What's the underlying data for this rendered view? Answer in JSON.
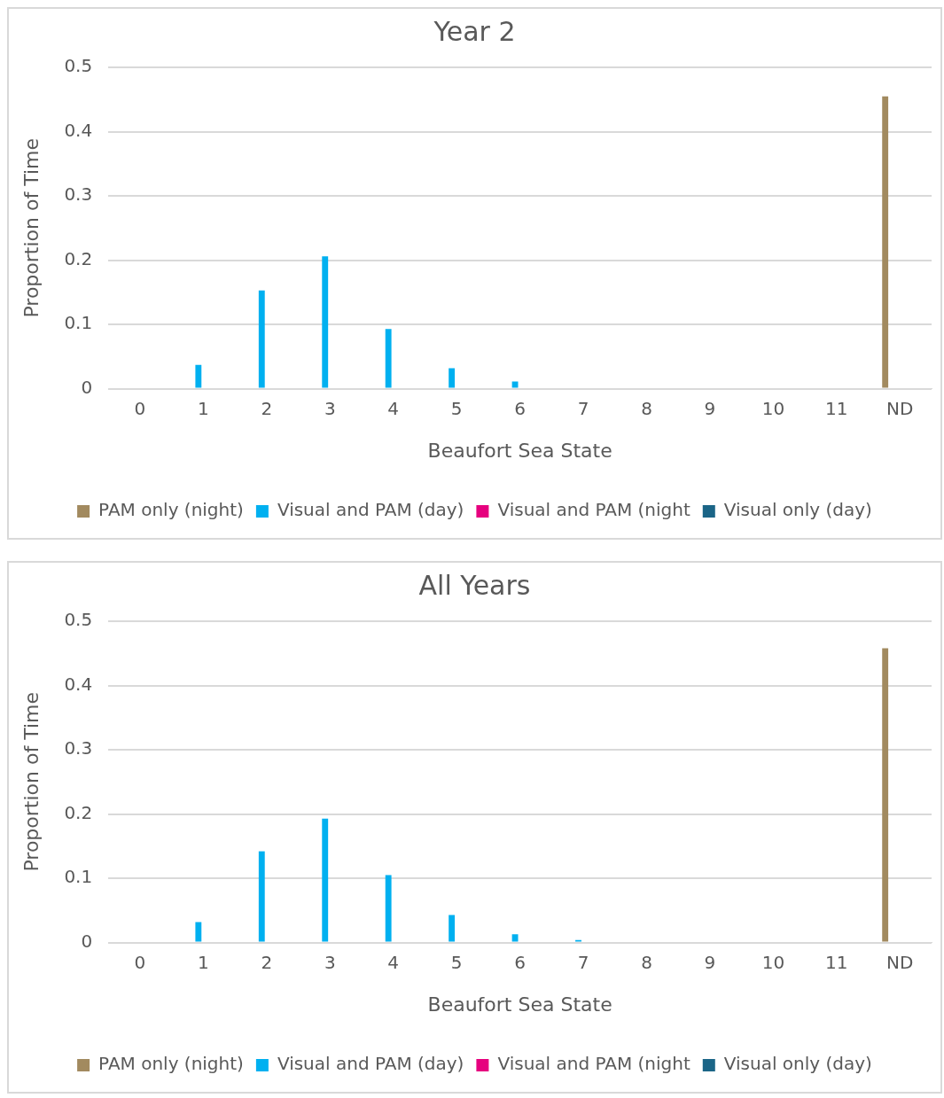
{
  "chart_data": [
    {
      "type": "bar",
      "title": "Year 2",
      "xlabel": "Beaufort Sea State",
      "ylabel": "Proportion of Time",
      "categories": [
        "0",
        "1",
        "2",
        "3",
        "4",
        "5",
        "6",
        "7",
        "8",
        "9",
        "10",
        "11",
        "ND"
      ],
      "series": [
        {
          "name": "PAM only (night)",
          "color": "#a28a5f",
          "values": [
            0,
            0,
            0,
            0,
            0,
            0,
            0,
            0,
            0,
            0,
            0,
            0,
            0.455
          ]
        },
        {
          "name": "Visual and PAM (day)",
          "color": "#00b0f0",
          "values": [
            null,
            0.037,
            0.153,
            0.206,
            0.093,
            0.032,
            0.011,
            null,
            0,
            0,
            0,
            0,
            0
          ]
        },
        {
          "name": "Visual and PAM (night",
          "color": "#e6007e",
          "values": [
            0,
            0,
            0,
            0,
            0,
            0,
            0,
            0,
            0,
            0,
            0,
            0,
            0
          ]
        },
        {
          "name": "Visual only (day)",
          "color": "#1b6587",
          "values": [
            0,
            0,
            0,
            0,
            0,
            0,
            0,
            0,
            0,
            0,
            0,
            0,
            0
          ]
        }
      ],
      "ylim": [
        0,
        0.5
      ],
      "yticks": [
        {
          "value": 0,
          "label": "0"
        },
        0.1,
        0.2,
        0.3,
        0.4,
        0.5
      ],
      "grid": "y",
      "legend": "bottom"
    },
    {
      "type": "bar",
      "title": "All Years",
      "xlabel": "Beaufort Sea State",
      "ylabel": "Proportion of Time",
      "categories": [
        "0",
        "1",
        "2",
        "3",
        "4",
        "5",
        "6",
        "7",
        "8",
        "9",
        "10",
        "11",
        "ND"
      ],
      "series": [
        {
          "name": "PAM only (night)",
          "color": "#a28a5f",
          "values": [
            0,
            0,
            0,
            0,
            0,
            0,
            0,
            0,
            0,
            0,
            0,
            0,
            0.458
          ]
        },
        {
          "name": "Visual and PAM (day)",
          "color": "#00b0f0",
          "values": [
            null,
            0.032,
            0.142,
            0.193,
            0.105,
            0.043,
            0.013,
            0.004,
            0,
            0,
            0,
            0,
            0
          ]
        },
        {
          "name": "Visual and PAM (night",
          "color": "#e6007e",
          "values": [
            0,
            0,
            0,
            0,
            0,
            0,
            0,
            0,
            0,
            0,
            0,
            0,
            0
          ]
        },
        {
          "name": "Visual only (day)",
          "color": "#1b6587",
          "values": [
            0,
            0,
            0,
            0,
            0,
            0,
            0,
            0,
            0,
            0,
            0,
            0,
            0
          ]
        }
      ],
      "ylim": [
        0,
        0.5
      ],
      "yticks": [
        {
          "value": 0,
          "label": "0"
        },
        0.1,
        0.2,
        0.3,
        0.4,
        0.5
      ],
      "grid": "y",
      "legend": "bottom"
    }
  ]
}
